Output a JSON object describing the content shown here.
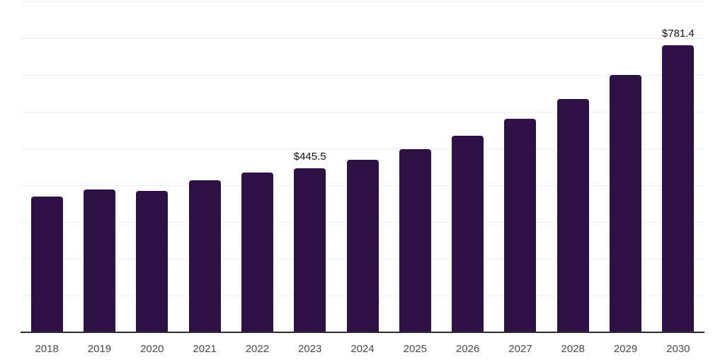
{
  "chart_data": {
    "type": "bar",
    "title": "",
    "xlabel": "",
    "ylabel": "",
    "categories": [
      "2018",
      "2019",
      "2020",
      "2021",
      "2022",
      "2023",
      "2024",
      "2025",
      "2026",
      "2027",
      "2028",
      "2029",
      "2030"
    ],
    "values": [
      369,
      388,
      384,
      413,
      434,
      445.5,
      470,
      498.5,
      535,
      581.5,
      634.5,
      700.5,
      781.4
    ],
    "data_labels": [
      "",
      "",
      "",
      "",
      "",
      "$445.5",
      "",
      "",
      "",
      "",
      "",
      "",
      "$781.4"
    ],
    "ylim": [
      0,
      900
    ],
    "gridline_step": 100,
    "grid": true,
    "legend": "none",
    "y_axis_tick_labels_visible": false,
    "colors": {
      "bar": "#2f1245",
      "axis_line": "#2d2d2d",
      "gridline": "#efefef",
      "x_tick_label": "#4a4a4a",
      "data_label": "#111111",
      "background": "#ffffff"
    }
  }
}
